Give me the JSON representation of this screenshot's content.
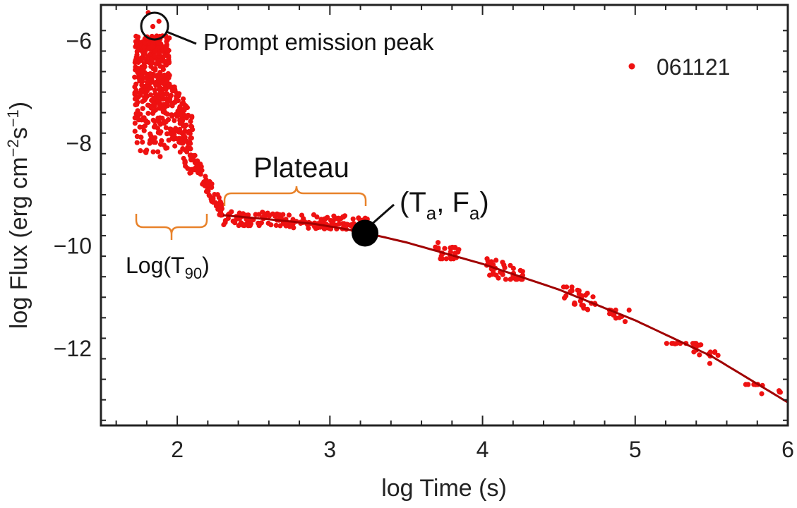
{
  "chart_data": {
    "type": "scatter",
    "xlabel": "log Time (s)",
    "ylabel_main": "log Flux (erg cm",
    "ylabel_exp1": "−2",
    "ylabel_mid": "s",
    "ylabel_exp2": "−1",
    "ylabel_close": ")",
    "xlim": [
      1.5,
      6.0
    ],
    "ylim": [
      -13.5,
      -5.3
    ],
    "xticks": [
      2,
      3,
      4,
      5,
      6
    ],
    "xtick_labels": [
      "2",
      "3",
      "4",
      "5",
      "6"
    ],
    "yticks": [
      -6,
      -8,
      -10,
      -12
    ],
    "ytick_labels": [
      "−6",
      "−8",
      "−10",
      "−12"
    ],
    "legend": {
      "label": "061121",
      "position": "top-right"
    },
    "series": [
      {
        "name": "061121",
        "color": "#ee1111",
        "clusters": [
          {
            "x": [
              1.72,
              1.95
            ],
            "y": [
              -8.3,
              -5.9
            ],
            "n": 420,
            "trend": "prompt"
          },
          {
            "x": [
              1.95,
              2.1
            ],
            "y": [
              -8.6,
              -6.9
            ],
            "n": 130,
            "trend": "decay1"
          },
          {
            "x": [
              2.1,
              2.3
            ],
            "y": [
              -9.4,
              -8.1
            ],
            "n": 70,
            "trend": "decay2"
          },
          {
            "x": [
              2.3,
              3.25
            ],
            "y": [
              -9.75,
              -9.3
            ],
            "n": 170,
            "trend": "plateau"
          },
          {
            "x": [
              3.68,
              3.85
            ],
            "y": [
              -10.25,
              -9.9
            ],
            "n": 25,
            "trend": "fit"
          },
          {
            "x": [
              4.02,
              4.27
            ],
            "y": [
              -10.65,
              -10.1
            ],
            "n": 40,
            "trend": "fit"
          },
          {
            "x": [
              4.52,
              4.75
            ],
            "y": [
              -11.25,
              -10.8
            ],
            "n": 30,
            "trend": "fit"
          },
          {
            "x": [
              4.83,
              4.97
            ],
            "y": [
              -11.55,
              -11.25
            ],
            "n": 12,
            "trend": "fit"
          },
          {
            "x": [
              5.2,
              5.55
            ],
            "y": [
              -12.5,
              -11.9
            ],
            "n": 25,
            "trend": "fit"
          },
          {
            "x": [
              5.72,
              5.97
            ],
            "y": [
              -13.1,
              -12.7
            ],
            "n": 12,
            "trend": "fit"
          }
        ],
        "highlight_points": [
          {
            "x": 1.81,
            "y": -5.45
          },
          {
            "x": 1.84,
            "y": -5.72
          },
          {
            "x": 1.88,
            "y": -5.62
          }
        ]
      }
    ],
    "fit_line": {
      "color": "#a00000",
      "x": [
        2.3,
        2.6,
        2.9,
        3.2,
        3.5,
        4.0,
        4.5,
        5.0,
        5.5,
        6.0
      ],
      "y": [
        -9.4,
        -9.48,
        -9.57,
        -9.72,
        -9.93,
        -10.35,
        -10.85,
        -11.45,
        -12.15,
        -13.05
      ]
    },
    "marker": {
      "x": 3.23,
      "y": -9.75,
      "label_open": "(T",
      "label_sub1": "a",
      "label_mid": ", F",
      "label_sub2": "a",
      "label_close": ")"
    },
    "annotations": {
      "peak_label": "Prompt emission peak",
      "plateau_label": "Plateau",
      "t90_label_open": "Log(T",
      "t90_label_sub": "90",
      "t90_label_close": ")"
    },
    "brace_color": "#e8822a"
  }
}
